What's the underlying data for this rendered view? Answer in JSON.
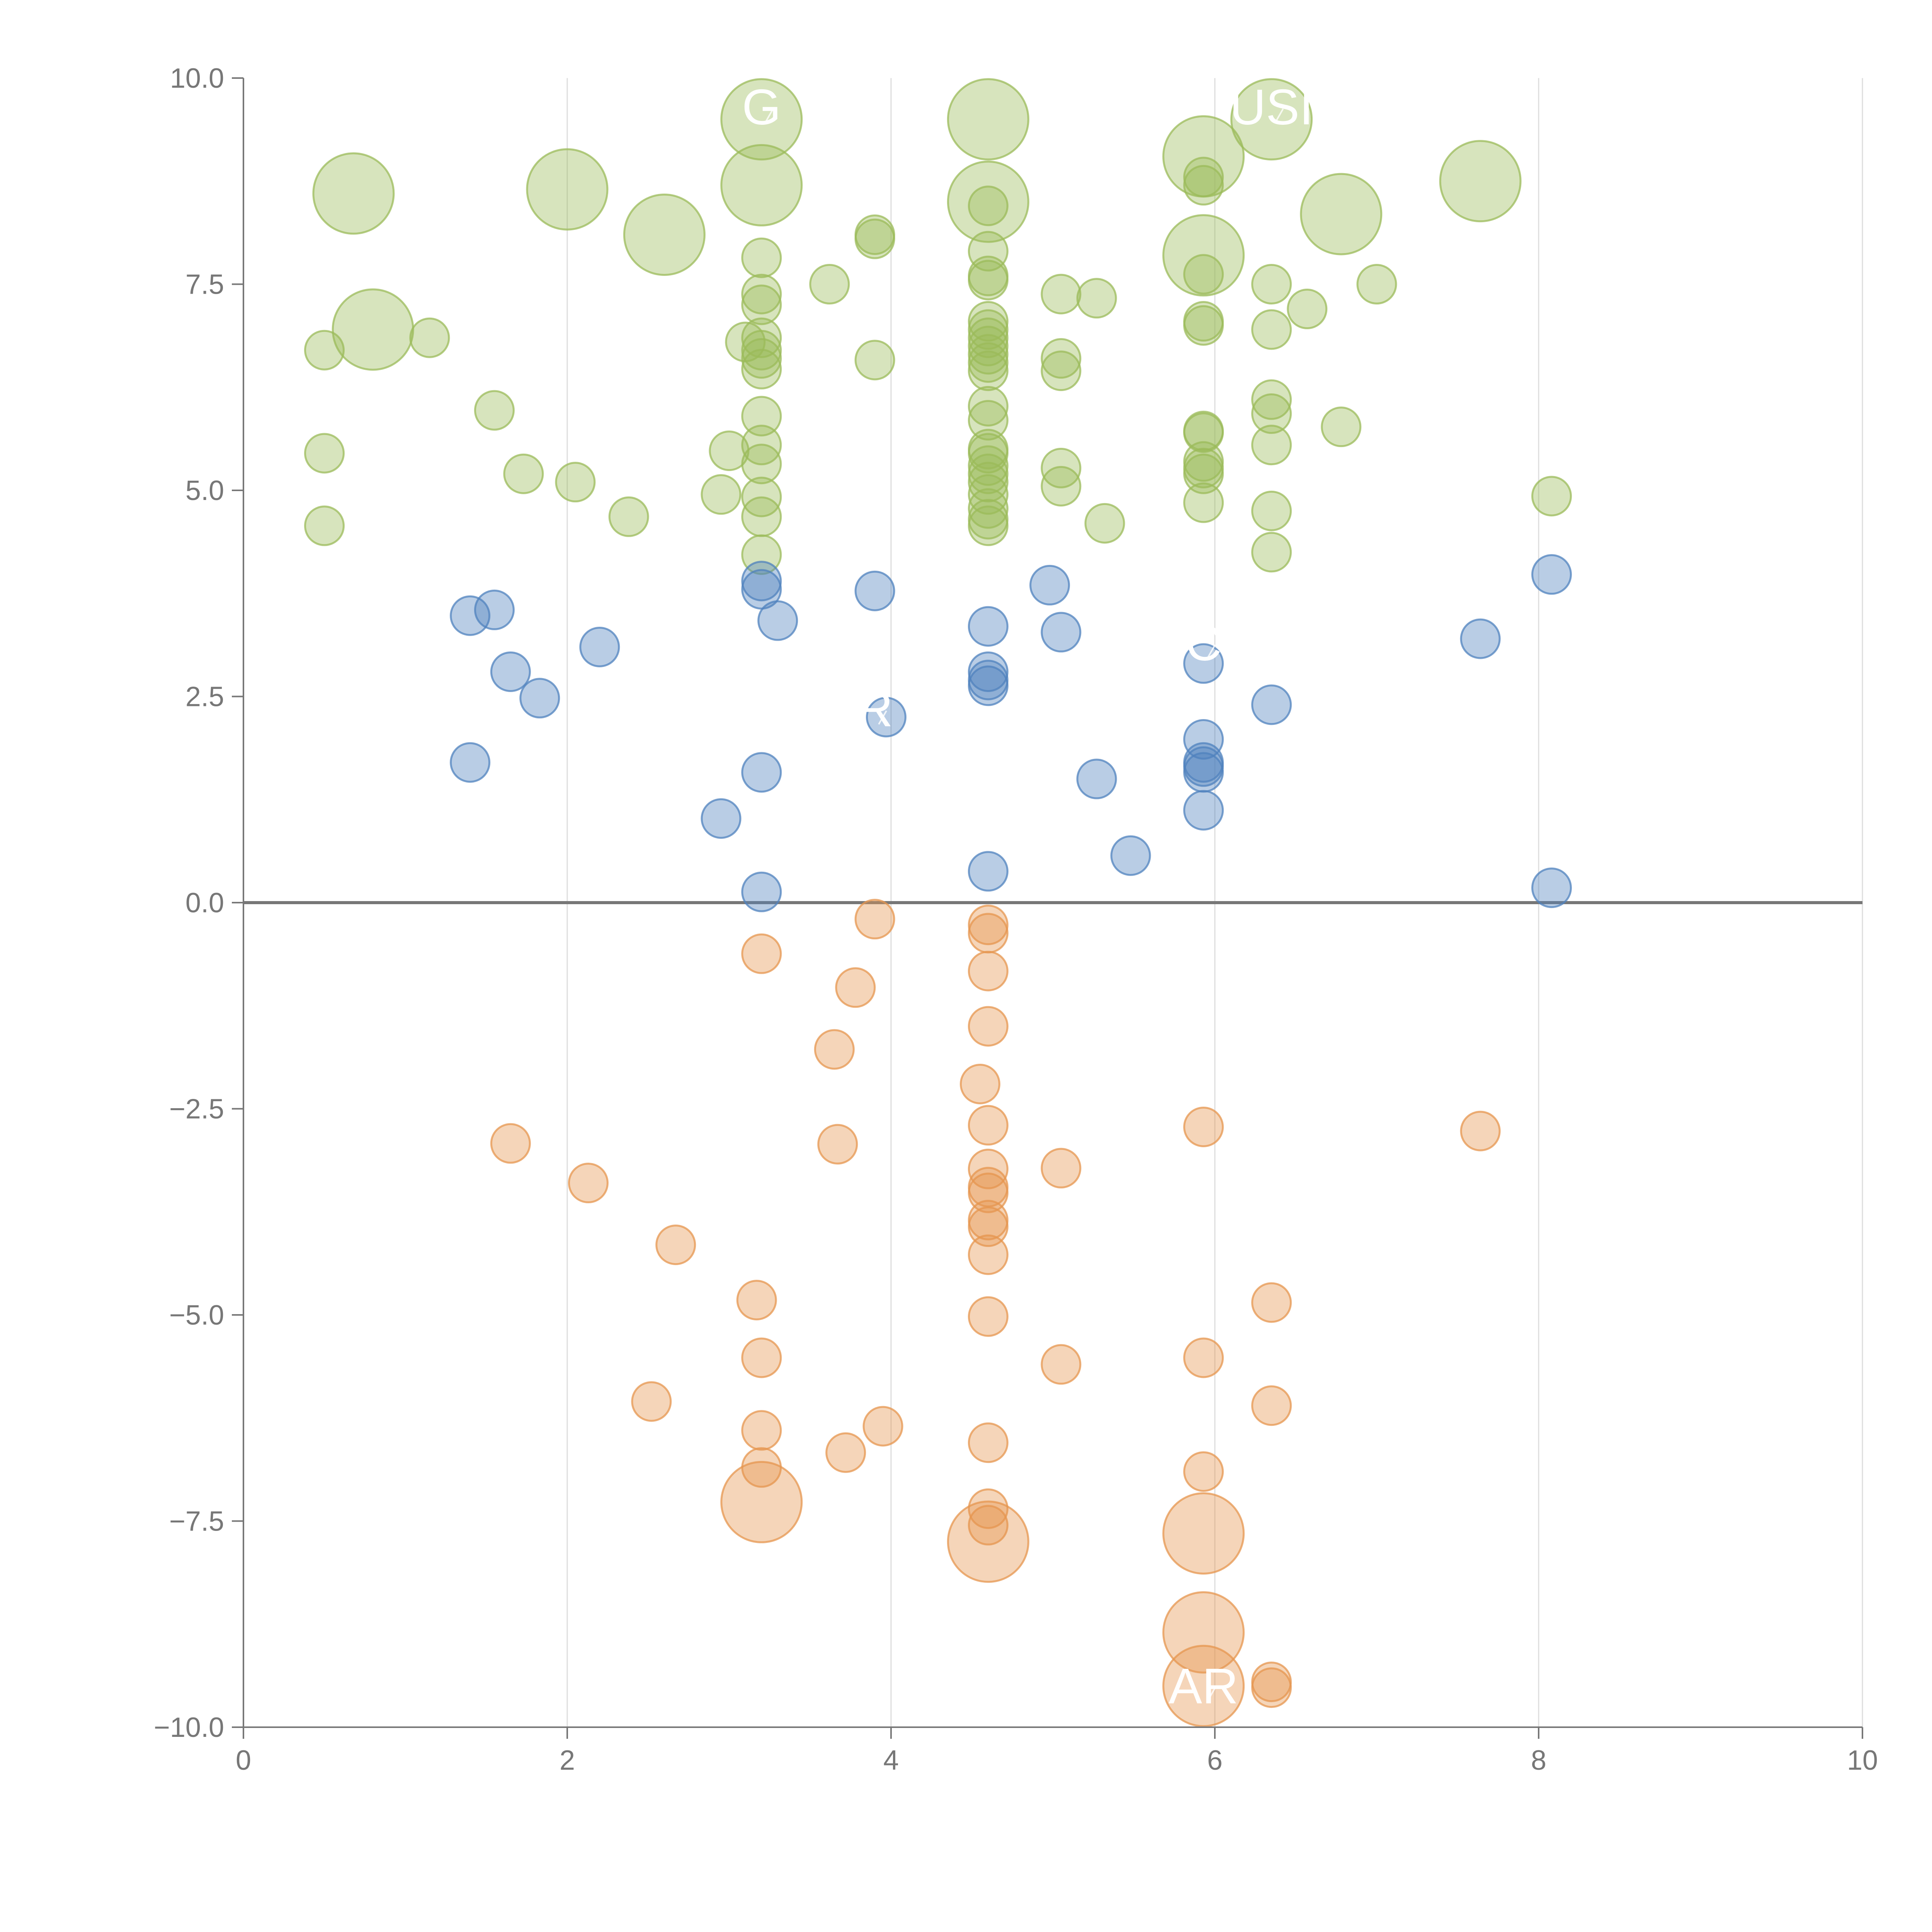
{
  "chart_data": {
    "type": "scatter",
    "title": "",
    "xlabel": "",
    "ylabel": "",
    "xlim": [
      0,
      10
    ],
    "ylim": [
      -10,
      10
    ],
    "x_ticks": [
      0,
      2,
      4,
      6,
      8,
      10
    ],
    "x_tick_labels": [
      "0",
      "2",
      "4",
      "6",
      "8",
      "10"
    ],
    "y_ticks": [
      10,
      7.5,
      5,
      2.5,
      0,
      -2.5,
      -5,
      -7.5,
      -10
    ],
    "y_tick_labels": [
      "10.0",
      "7.5",
      "5.0",
      "2.5",
      "0.0",
      "−2.5",
      "−5.0",
      "−7.5",
      "−10.0"
    ],
    "grid": "vertical gridlines at x ticks",
    "reference_line_y": 0,
    "colors": {
      "high": "#9bbb59",
      "mid": "#4f81bd",
      "low": "#e6964f"
    },
    "series": [
      {
        "color_key": "high",
        "points": [
          {
            "x": 0.68,
            "y": 8.6,
            "s": "big"
          },
          {
            "x": 2.0,
            "y": 8.65,
            "s": "big"
          },
          {
            "x": 2.6,
            "y": 8.1,
            "s": "big"
          },
          {
            "x": 3.2,
            "y": 9.5,
            "s": "big"
          },
          {
            "x": 3.2,
            "y": 8.7,
            "s": "big"
          },
          {
            "x": 4.6,
            "y": 9.5,
            "s": "big"
          },
          {
            "x": 4.6,
            "y": 8.5,
            "s": "big"
          },
          {
            "x": 5.93,
            "y": 9.05,
            "s": "big"
          },
          {
            "x": 5.93,
            "y": 7.85,
            "s": "big"
          },
          {
            "x": 6.35,
            "y": 9.5,
            "s": "big"
          },
          {
            "x": 6.78,
            "y": 8.35,
            "s": "big"
          },
          {
            "x": 7.64,
            "y": 8.75,
            "s": "big"
          },
          {
            "x": 0.8,
            "y": 6.95,
            "s": "big"
          },
          {
            "x": 0.5,
            "y": 6.7
          },
          {
            "x": 1.15,
            "y": 6.85
          },
          {
            "x": 0.5,
            "y": 5.45
          },
          {
            "x": 1.55,
            "y": 5.97
          },
          {
            "x": 0.5,
            "y": 4.57
          },
          {
            "x": 1.73,
            "y": 5.2
          },
          {
            "x": 2.05,
            "y": 5.1
          },
          {
            "x": 2.38,
            "y": 4.68
          },
          {
            "x": 2.95,
            "y": 4.95
          },
          {
            "x": 3.0,
            "y": 5.48
          },
          {
            "x": 3.1,
            "y": 6.8
          },
          {
            "x": 3.2,
            "y": 7.82
          },
          {
            "x": 3.2,
            "y": 7.38
          },
          {
            "x": 3.2,
            "y": 7.25
          },
          {
            "x": 3.2,
            "y": 6.85
          },
          {
            "x": 3.2,
            "y": 6.7
          },
          {
            "x": 3.2,
            "y": 6.6
          },
          {
            "x": 3.2,
            "y": 6.47
          },
          {
            "x": 3.2,
            "y": 5.9
          },
          {
            "x": 3.2,
            "y": 5.55
          },
          {
            "x": 3.2,
            "y": 5.32
          },
          {
            "x": 3.2,
            "y": 4.92
          },
          {
            "x": 3.2,
            "y": 4.68
          },
          {
            "x": 3.2,
            "y": 4.22
          },
          {
            "x": 3.62,
            "y": 7.5
          },
          {
            "x": 3.9,
            "y": 8.1
          },
          {
            "x": 3.9,
            "y": 8.05
          },
          {
            "x": 3.9,
            "y": 6.58
          },
          {
            "x": 4.6,
            "y": 8.45
          },
          {
            "x": 4.6,
            "y": 7.9
          },
          {
            "x": 4.6,
            "y": 7.6
          },
          {
            "x": 4.6,
            "y": 7.55
          },
          {
            "x": 4.6,
            "y": 7.05
          },
          {
            "x": 4.6,
            "y": 6.95
          },
          {
            "x": 4.6,
            "y": 6.85
          },
          {
            "x": 4.6,
            "y": 6.75
          },
          {
            "x": 4.6,
            "y": 6.65
          },
          {
            "x": 4.6,
            "y": 6.55
          },
          {
            "x": 4.6,
            "y": 6.45
          },
          {
            "x": 4.6,
            "y": 6.02
          },
          {
            "x": 4.6,
            "y": 5.85
          },
          {
            "x": 4.6,
            "y": 5.5
          },
          {
            "x": 4.6,
            "y": 5.45
          },
          {
            "x": 4.6,
            "y": 5.3
          },
          {
            "x": 4.6,
            "y": 5.2
          },
          {
            "x": 4.6,
            "y": 5.1
          },
          {
            "x": 4.6,
            "y": 4.95
          },
          {
            "x": 4.6,
            "y": 4.78
          },
          {
            "x": 4.6,
            "y": 4.65
          },
          {
            "x": 4.6,
            "y": 4.57
          },
          {
            "x": 5.05,
            "y": 7.38
          },
          {
            "x": 5.05,
            "y": 6.6
          },
          {
            "x": 5.05,
            "y": 6.45
          },
          {
            "x": 5.05,
            "y": 5.27
          },
          {
            "x": 5.05,
            "y": 5.05
          },
          {
            "x": 5.27,
            "y": 7.33
          },
          {
            "x": 5.32,
            "y": 4.6
          },
          {
            "x": 5.93,
            "y": 8.8
          },
          {
            "x": 5.93,
            "y": 8.7
          },
          {
            "x": 5.93,
            "y": 7.62
          },
          {
            "x": 5.93,
            "y": 7.05
          },
          {
            "x": 5.93,
            "y": 7.0
          },
          {
            "x": 5.93,
            "y": 5.72
          },
          {
            "x": 5.93,
            "y": 5.7
          },
          {
            "x": 5.93,
            "y": 5.35
          },
          {
            "x": 5.93,
            "y": 5.27
          },
          {
            "x": 5.93,
            "y": 5.2
          },
          {
            "x": 5.93,
            "y": 4.85
          },
          {
            "x": 6.35,
            "y": 7.5
          },
          {
            "x": 6.35,
            "y": 6.95
          },
          {
            "x": 6.35,
            "y": 6.1
          },
          {
            "x": 6.35,
            "y": 5.93
          },
          {
            "x": 6.35,
            "y": 5.55
          },
          {
            "x": 6.35,
            "y": 4.75
          },
          {
            "x": 6.35,
            "y": 4.25
          },
          {
            "x": 6.57,
            "y": 7.2
          },
          {
            "x": 6.78,
            "y": 5.77
          },
          {
            "x": 7.0,
            "y": 7.5
          },
          {
            "x": 8.08,
            "y": 4.93
          }
        ]
      },
      {
        "color_key": "mid",
        "points": [
          {
            "x": 1.4,
            "y": 3.48
          },
          {
            "x": 1.55,
            "y": 3.55
          },
          {
            "x": 1.65,
            "y": 2.8
          },
          {
            "x": 1.83,
            "y": 2.48
          },
          {
            "x": 2.2,
            "y": 3.1
          },
          {
            "x": 1.4,
            "y": 1.7
          },
          {
            "x": 2.95,
            "y": 1.02
          },
          {
            "x": 3.2,
            "y": 3.9
          },
          {
            "x": 3.2,
            "y": 3.8
          },
          {
            "x": 3.3,
            "y": 3.42
          },
          {
            "x": 3.2,
            "y": 1.58
          },
          {
            "x": 3.2,
            "y": 0.13
          },
          {
            "x": 3.9,
            "y": 3.78
          },
          {
            "x": 3.97,
            "y": 2.25
          },
          {
            "x": 4.6,
            "y": 3.35
          },
          {
            "x": 4.6,
            "y": 2.8
          },
          {
            "x": 4.6,
            "y": 2.7
          },
          {
            "x": 4.6,
            "y": 2.63
          },
          {
            "x": 4.6,
            "y": 0.38
          },
          {
            "x": 4.98,
            "y": 3.85
          },
          {
            "x": 5.05,
            "y": 3.28
          },
          {
            "x": 5.27,
            "y": 1.5
          },
          {
            "x": 5.48,
            "y": 0.57
          },
          {
            "x": 5.93,
            "y": 2.9
          },
          {
            "x": 5.93,
            "y": 1.98
          },
          {
            "x": 5.93,
            "y": 1.7
          },
          {
            "x": 5.93,
            "y": 1.65
          },
          {
            "x": 5.93,
            "y": 1.58
          },
          {
            "x": 5.93,
            "y": 1.12
          },
          {
            "x": 6.35,
            "y": 2.4
          },
          {
            "x": 7.64,
            "y": 3.2
          },
          {
            "x": 8.08,
            "y": 3.98
          },
          {
            "x": 8.08,
            "y": 0.18
          }
        ]
      },
      {
        "color_key": "low",
        "points": [
          {
            "x": 1.65,
            "y": -2.92
          },
          {
            "x": 2.13,
            "y": -3.4
          },
          {
            "x": 2.67,
            "y": -4.15
          },
          {
            "x": 2.52,
            "y": -6.05
          },
          {
            "x": 3.2,
            "y": -0.62
          },
          {
            "x": 3.17,
            "y": -4.82
          },
          {
            "x": 3.2,
            "y": -5.52
          },
          {
            "x": 3.2,
            "y": -6.4
          },
          {
            "x": 3.2,
            "y": -6.85
          },
          {
            "x": 3.2,
            "y": -7.27,
            "s": "big"
          },
          {
            "x": 3.9,
            "y": -0.2
          },
          {
            "x": 3.78,
            "y": -1.03
          },
          {
            "x": 3.65,
            "y": -1.78
          },
          {
            "x": 3.67,
            "y": -2.93
          },
          {
            "x": 3.95,
            "y": -6.35
          },
          {
            "x": 3.72,
            "y": -6.67
          },
          {
            "x": 4.6,
            "y": -0.27
          },
          {
            "x": 4.6,
            "y": -0.37
          },
          {
            "x": 4.6,
            "y": -0.83
          },
          {
            "x": 4.6,
            "y": -1.5
          },
          {
            "x": 4.55,
            "y": -2.2
          },
          {
            "x": 4.6,
            "y": -2.7
          },
          {
            "x": 4.6,
            "y": -3.23
          },
          {
            "x": 4.6,
            "y": -3.45
          },
          {
            "x": 4.6,
            "y": -3.52
          },
          {
            "x": 4.6,
            "y": -3.85
          },
          {
            "x": 4.6,
            "y": -3.93
          },
          {
            "x": 4.6,
            "y": -4.27
          },
          {
            "x": 4.6,
            "y": -5.02
          },
          {
            "x": 4.6,
            "y": -6.55
          },
          {
            "x": 4.6,
            "y": -7.35
          },
          {
            "x": 4.6,
            "y": -7.55
          },
          {
            "x": 4.6,
            "y": -7.75,
            "s": "big"
          },
          {
            "x": 5.05,
            "y": -3.22
          },
          {
            "x": 5.05,
            "y": -5.6
          },
          {
            "x": 5.93,
            "y": -2.72
          },
          {
            "x": 5.93,
            "y": -5.52
          },
          {
            "x": 5.93,
            "y": -6.9
          },
          {
            "x": 5.93,
            "y": -7.65,
            "s": "big"
          },
          {
            "x": 5.93,
            "y": -8.85,
            "s": "big"
          },
          {
            "x": 5.93,
            "y": -9.5,
            "s": "big"
          },
          {
            "x": 6.35,
            "y": -4.85
          },
          {
            "x": 6.35,
            "y": -6.1
          },
          {
            "x": 6.35,
            "y": -9.45
          },
          {
            "x": 6.35,
            "y": -9.52
          },
          {
            "x": 7.64,
            "y": -2.77
          }
        ]
      }
    ],
    "annotations": [
      {
        "text": "AR",
        "x": 5.93,
        "y": -9.5
      },
      {
        "text": "G",
        "x": 3.2,
        "y": 9.65
      },
      {
        "text": "USI",
        "x": 6.35,
        "y": 9.65
      },
      {
        "text": "R",
        "x": 3.9,
        "y": 2.35
      },
      {
        "text": "C",
        "x": 5.93,
        "y": 3.15
      }
    ]
  }
}
